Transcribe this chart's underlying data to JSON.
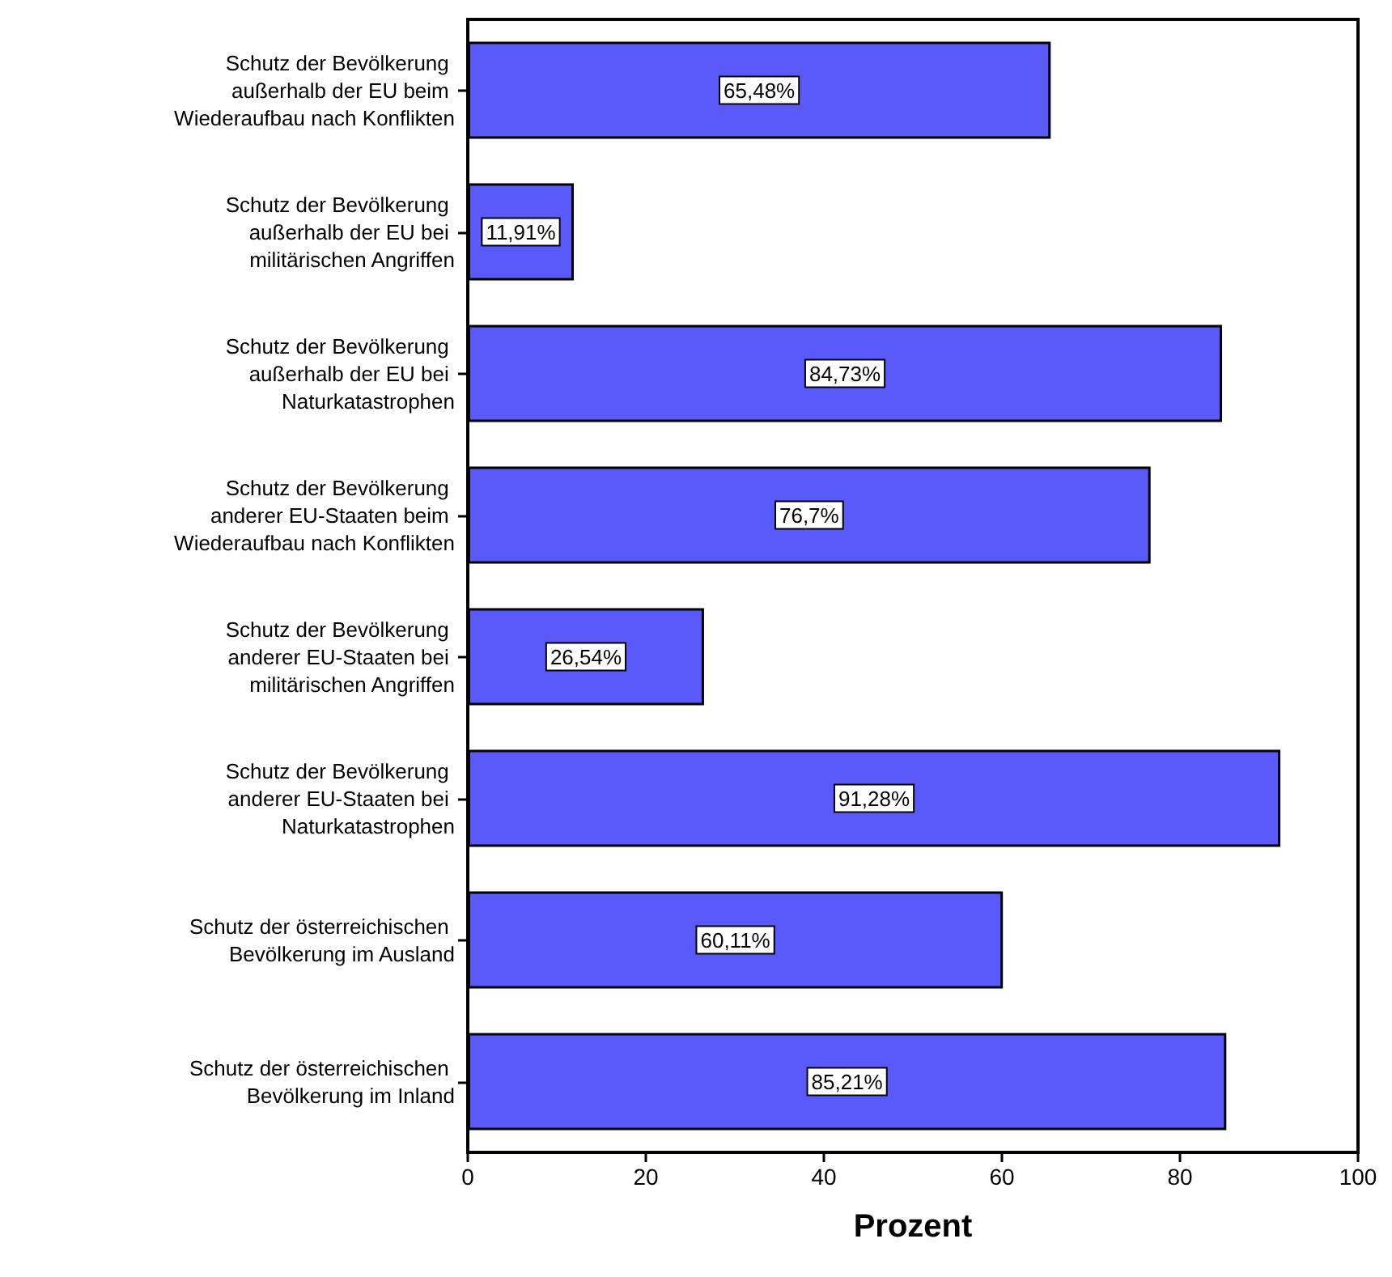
{
  "chart_data": {
    "type": "bar",
    "orientation": "horizontal",
    "xlabel": "Prozent",
    "categories": [
      "Schutz der Bevölkerung außerhalb der EU beim Wiederaufbau nach Konflikten",
      "Schutz der Bevölkerung außerhalb der EU bei militärischen Angriffen",
      "Schutz der Bevölkerung außerhalb der EU bei Naturkatastrophen",
      "Schutz der Bevölkerung anderer EU-Staaten beim Wiederaufbau nach Konflikten",
      "Schutz der Bevölkerung anderer EU-Staaten bei militärischen Angriffen",
      "Schutz der Bevölkerung anderer EU-Staaten bei Naturkatastrophen",
      "Schutz der österreichischen Bevölkerung im Ausland",
      "Schutz der österreichischen Bevölkerung im Inland"
    ],
    "values": [
      65.48,
      11.91,
      84.73,
      76.7,
      26.54,
      91.28,
      60.11,
      85.21
    ],
    "value_labels": [
      "65,48%",
      "11,91%",
      "84,73%",
      "76,7%",
      "26,54%",
      "91,28%",
      "60,11%",
      "85,21%"
    ],
    "color": "#5a5afa",
    "xlim": [
      0,
      100
    ],
    "xticks": [
      0,
      20,
      40,
      60,
      80,
      100
    ]
  }
}
